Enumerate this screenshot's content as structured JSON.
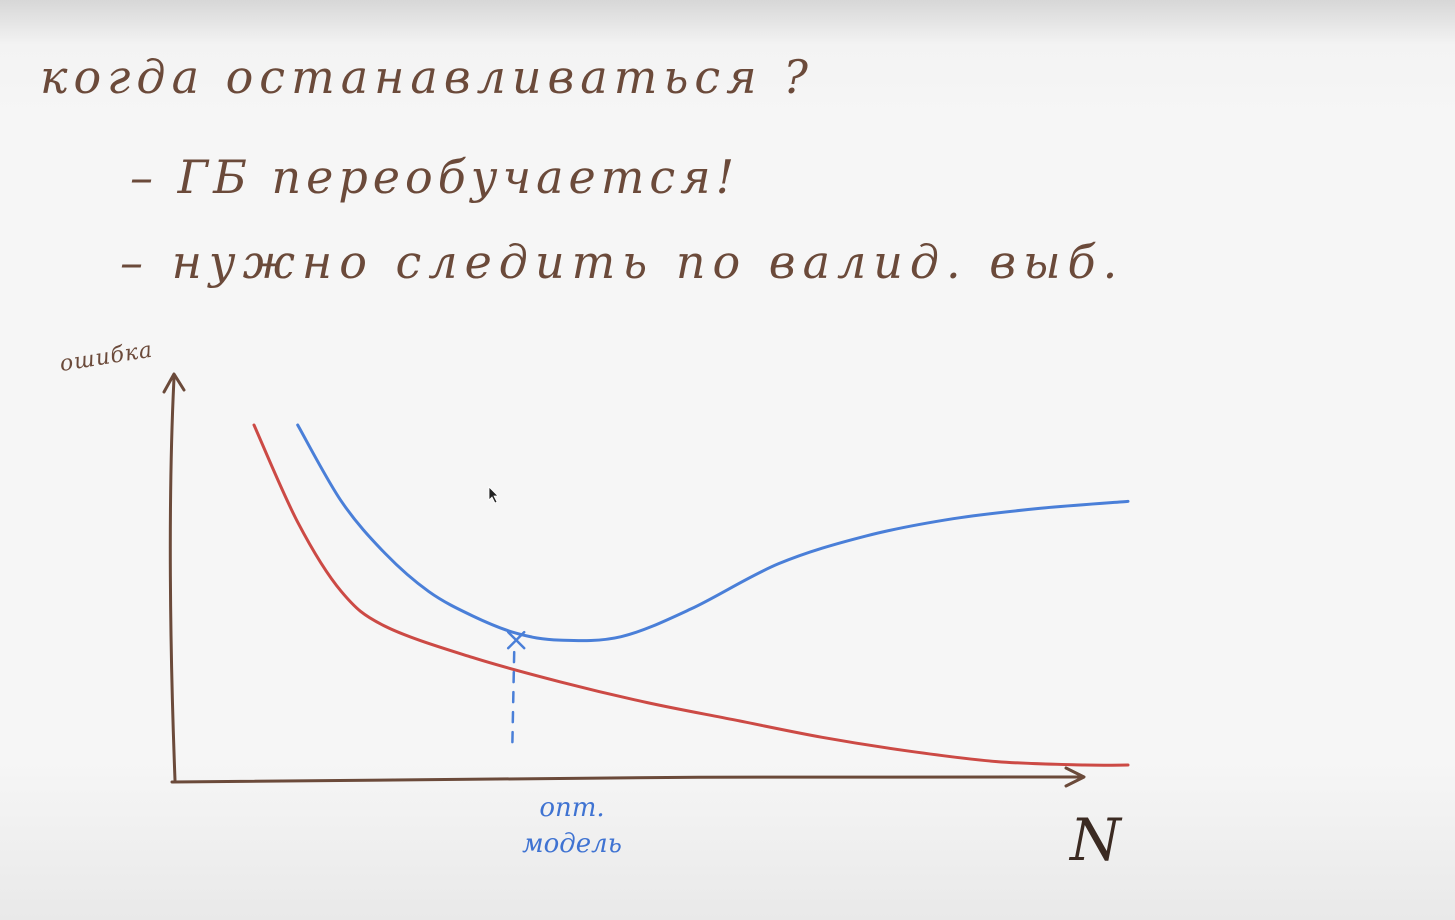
{
  "notes": {
    "line1": "когда останавливаться ?",
    "line2": "– ГБ переобучается!",
    "line3": "– нужно следить по валид. выб."
  },
  "chart_data": {
    "type": "line",
    "ylabel": "ошибка",
    "xlabel": "N",
    "series": [
      {
        "color": "#cc4a45",
        "x": [
          0.0,
          0.05,
          0.1,
          0.15,
          0.25,
          0.35,
          0.45,
          0.55,
          0.65,
          0.75,
          0.85,
          0.95,
          1.0
        ],
        "y": [
          1.0,
          0.72,
          0.52,
          0.42,
          0.33,
          0.26,
          0.2,
          0.15,
          0.1,
          0.06,
          0.03,
          0.02,
          0.02
        ]
      },
      {
        "color": "#4a7fd8",
        "x": [
          0.05,
          0.1,
          0.15,
          0.2,
          0.25,
          0.3,
          0.35,
          0.42,
          0.5,
          0.6,
          0.7,
          0.8,
          0.9,
          1.0
        ],
        "y": [
          1.0,
          0.78,
          0.63,
          0.52,
          0.45,
          0.4,
          0.38,
          0.39,
          0.47,
          0.6,
          0.68,
          0.73,
          0.76,
          0.78
        ]
      }
    ],
    "annotations": [
      {
        "label": "опт. модель",
        "x": 0.3,
        "y": 0.38,
        "marker": "x",
        "color": "#4a7fd8"
      }
    ],
    "grid": false,
    "legend": "none"
  }
}
